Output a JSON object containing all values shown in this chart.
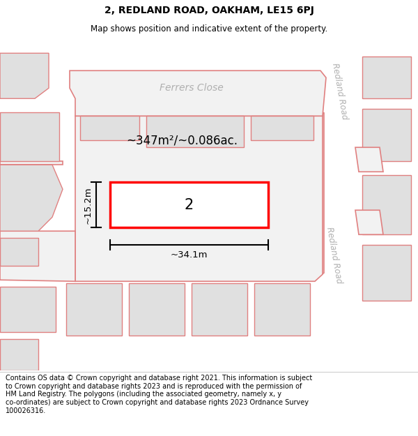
{
  "title": "2, REDLAND ROAD, OAKHAM, LE15 6PJ",
  "subtitle": "Map shows position and indicative extent of the property.",
  "footer": "Contains OS data © Crown copyright and database right 2021. This information is subject\nto Crown copyright and database rights 2023 and is reproduced with the permission of\nHM Land Registry. The polygons (including the associated geometry, namely x, y\nco-ordinates) are subject to Crown copyright and database rights 2023 Ordnance Survey\n100026316.",
  "map_bg": "#f2f2f2",
  "road_color": "#ffffff",
  "building_fill": "#e0e0e0",
  "parcel_outline": "#e08080",
  "highlight_color": "#ff0000",
  "area_text": "~347m²/~0.086ac.",
  "width_text": "~34.1m",
  "height_text": "~15.2m",
  "property_number": "2",
  "road_label_ferrers": "Ferrers Close",
  "road_label_redland_upper": "Redland Road",
  "road_label_redland_lower": "Redland Road",
  "title_fontsize": 10,
  "subtitle_fontsize": 8.5,
  "footer_fontsize": 7
}
